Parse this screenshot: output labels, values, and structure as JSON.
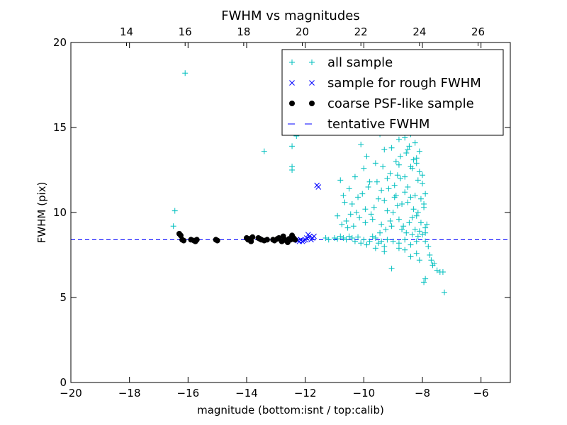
{
  "chart_data": {
    "type": "scatter",
    "title": "FWHM vs magnitudes",
    "xlabel": "magnitude (bottom:isnt / top:calib)",
    "ylabel": "FWHM (pix)",
    "xlim": [
      -20,
      -5
    ],
    "ylim": [
      0,
      20
    ],
    "x_ticks": [
      -20,
      -18,
      -16,
      -14,
      -12,
      -10,
      -8,
      -6
    ],
    "x_tick_labels": [
      "−20",
      "−18",
      "−16",
      "−14",
      "−12",
      "−10",
      "−8",
      "−6"
    ],
    "y_ticks": [
      0,
      5,
      10,
      15,
      20
    ],
    "y_tick_labels": [
      "0",
      "5",
      "10",
      "15",
      "20"
    ],
    "top_axis": {
      "offset": 32.1,
      "ticks": [
        14,
        16,
        18,
        20,
        22,
        24,
        26
      ],
      "tick_labels": [
        "14",
        "16",
        "18",
        "20",
        "22",
        "24",
        "26"
      ]
    },
    "grid": false,
    "legend_position": "top-right",
    "colors": {
      "all_sample": "#00bfbf",
      "rough_fwhm": "#0000ff",
      "coarse_psf": "#000000",
      "tentative_fwhm": "#0000ff"
    },
    "series": [
      {
        "name": "all sample",
        "marker": "plus",
        "points": [
          [
            -16.1,
            18.2
          ],
          [
            -16.45,
            10.1
          ],
          [
            -16.5,
            9.2
          ],
          [
            -13.4,
            13.6
          ],
          [
            -12.45,
            13.9
          ],
          [
            -12.45,
            12.7
          ],
          [
            -12.45,
            12.5
          ],
          [
            -12.35,
            15.1
          ],
          [
            -12.3,
            14.5
          ],
          [
            -11.3,
            8.5
          ],
          [
            -11.2,
            8.4
          ],
          [
            -11.0,
            8.5
          ],
          [
            -10.9,
            8.45
          ],
          [
            -10.8,
            8.6
          ],
          [
            -10.7,
            8.5
          ],
          [
            -10.6,
            8.4
          ],
          [
            -10.5,
            8.6
          ],
          [
            -10.4,
            8.5
          ],
          [
            -10.3,
            8.3
          ],
          [
            -10.2,
            8.55
          ],
          [
            -10.1,
            8.2
          ],
          [
            -10.0,
            8.4
          ],
          [
            -9.9,
            8.1
          ],
          [
            -9.8,
            8.3
          ],
          [
            -9.7,
            8.6
          ],
          [
            -9.6,
            8.5
          ],
          [
            -9.5,
            8.2
          ],
          [
            -9.4,
            8.3
          ],
          [
            -9.3,
            8.0
          ],
          [
            -9.2,
            8.4
          ],
          [
            -9.0,
            8.3
          ],
          [
            -8.8,
            8.2
          ],
          [
            -8.6,
            8.4
          ],
          [
            -8.4,
            8.1
          ],
          [
            -8.2,
            8.3
          ],
          [
            -10.9,
            9.8
          ],
          [
            -10.8,
            11.9
          ],
          [
            -10.7,
            11.0
          ],
          [
            -10.6,
            9.5
          ],
          [
            -10.5,
            11.4
          ],
          [
            -10.4,
            10.5
          ],
          [
            -10.3,
            12.1
          ],
          [
            -10.2,
            10.9
          ],
          [
            -10.1,
            14.0
          ],
          [
            -10.0,
            12.6
          ],
          [
            -9.95,
            10.2
          ],
          [
            -9.9,
            13.3
          ],
          [
            -9.8,
            11.8
          ],
          [
            -9.7,
            9.6
          ],
          [
            -9.6,
            12.9
          ],
          [
            -9.5,
            10.8
          ],
          [
            -9.45,
            14.6
          ],
          [
            -9.4,
            11.3
          ],
          [
            -9.3,
            13.7
          ],
          [
            -9.2,
            10.1
          ],
          [
            -9.1,
            12.3
          ],
          [
            -9.05,
            9.2
          ],
          [
            -9.0,
            15.2
          ],
          [
            -8.95,
            11.6
          ],
          [
            -8.9,
            13.0
          ],
          [
            -8.85,
            10.4
          ],
          [
            -8.8,
            14.3
          ],
          [
            -8.75,
            12.0
          ],
          [
            -8.7,
            9.0
          ],
          [
            -8.65,
            15.8
          ],
          [
            -8.6,
            11.2
          ],
          [
            -8.55,
            13.5
          ],
          [
            -8.5,
            10.6
          ],
          [
            -8.45,
            16.8
          ],
          [
            -8.4,
            12.7
          ],
          [
            -8.35,
            9.7
          ],
          [
            -8.3,
            14.9
          ],
          [
            -8.25,
            11.0
          ],
          [
            -8.2,
            13.2
          ],
          [
            -8.15,
            10.0
          ],
          [
            -8.1,
            12.4
          ],
          [
            -8.05,
            9.4
          ],
          [
            -8.0,
            11.7
          ],
          [
            -7.95,
            10.3
          ],
          [
            -7.9,
            9.1
          ],
          [
            -8.6,
            18.6
          ],
          [
            -8.55,
            17.4
          ],
          [
            -8.5,
            16.2
          ],
          [
            -8.7,
            15.4
          ],
          [
            -8.4,
            15.0
          ],
          [
            -8.8,
            12.8
          ],
          [
            -8.9,
            11.0
          ],
          [
            -9.0,
            10.0
          ],
          [
            -9.1,
            9.5
          ],
          [
            -9.2,
            12.0
          ],
          [
            -9.3,
            10.7
          ],
          [
            -9.4,
            9.3
          ],
          [
            -9.55,
            11.8
          ],
          [
            -9.65,
            10.3
          ],
          [
            -9.75,
            9.9
          ],
          [
            -9.85,
            11.5
          ],
          [
            -9.95,
            9.4
          ],
          [
            -10.05,
            11.1
          ],
          [
            -10.15,
            9.7
          ],
          [
            -10.25,
            10.0
          ],
          [
            -10.35,
            9.2
          ],
          [
            -10.45,
            9.9
          ],
          [
            -10.55,
            9.1
          ],
          [
            -10.65,
            10.6
          ],
          [
            -10.75,
            9.3
          ],
          [
            -8.6,
            12.1
          ],
          [
            -8.5,
            11.5
          ],
          [
            -8.45,
            13.9
          ],
          [
            -8.4,
            10.9
          ],
          [
            -8.35,
            12.6
          ],
          [
            -8.3,
            10.2
          ],
          [
            -8.25,
            14.1
          ],
          [
            -8.2,
            9.8
          ],
          [
            -8.15,
            11.9
          ],
          [
            -8.1,
            8.9
          ],
          [
            -8.05,
            10.8
          ],
          [
            -8.0,
            8.7
          ],
          [
            -8.7,
            10.5
          ],
          [
            -8.75,
            13.3
          ],
          [
            -8.8,
            9.6
          ],
          [
            -8.85,
            12.2
          ],
          [
            -8.95,
            10.9
          ],
          [
            -9.05,
            13.8
          ],
          [
            -9.15,
            11.4
          ],
          [
            -9.25,
            9.0
          ],
          [
            -9.35,
            12.7
          ],
          [
            -9.45,
            8.8
          ],
          [
            -8.65,
            9.2
          ],
          [
            -8.55,
            8.8
          ],
          [
            -8.45,
            9.4
          ],
          [
            -8.35,
            8.7
          ],
          [
            -8.25,
            9.0
          ],
          [
            -8.15,
            8.6
          ],
          [
            -8.6,
            14.4
          ],
          [
            -8.5,
            13.7
          ],
          [
            -8.4,
            14.6
          ],
          [
            -8.3,
            13.1
          ],
          [
            -8.2,
            12.9
          ],
          [
            -8.1,
            13.6
          ],
          [
            -8.0,
            12.2
          ],
          [
            -7.9,
            8.3
          ],
          [
            -7.8,
            8.0
          ],
          [
            -7.75,
            7.5
          ],
          [
            -7.7,
            7.2
          ],
          [
            -7.65,
            6.9
          ],
          [
            -7.6,
            7.0
          ],
          [
            -7.5,
            6.6
          ],
          [
            -7.4,
            6.5
          ],
          [
            -7.3,
            6.5
          ],
          [
            -7.25,
            5.3
          ],
          [
            -7.9,
            6.1
          ],
          [
            -7.95,
            5.9
          ],
          [
            -8.1,
            7.2
          ],
          [
            -8.2,
            7.6
          ],
          [
            -8.4,
            7.4
          ],
          [
            -8.6,
            7.8
          ],
          [
            -8.8,
            7.9
          ],
          [
            -9.05,
            6.7
          ],
          [
            -9.3,
            7.7
          ],
          [
            -9.6,
            7.9
          ],
          [
            -7.9,
            8.8
          ],
          [
            -7.85,
            9.3
          ],
          [
            -7.95,
            10.5
          ],
          [
            -7.9,
            11.1
          ]
        ]
      },
      {
        "name": "sample for rough FWHM",
        "marker": "x",
        "points": [
          [
            -11.6,
            11.6
          ],
          [
            -11.55,
            11.5
          ],
          [
            -11.7,
            8.6
          ],
          [
            -11.75,
            8.5
          ],
          [
            -11.8,
            8.4
          ],
          [
            -11.85,
            8.6
          ],
          [
            -11.9,
            8.7
          ],
          [
            -11.95,
            8.5
          ],
          [
            -12.0,
            8.4
          ],
          [
            -12.05,
            8.35
          ],
          [
            -12.1,
            8.3
          ],
          [
            -12.15,
            8.4
          ],
          [
            -12.2,
            8.3
          ],
          [
            -12.25,
            8.35
          ],
          [
            -12.3,
            8.4
          ]
        ]
      },
      {
        "name": "coarse PSF-like sample",
        "marker": "dot",
        "points": [
          [
            -16.3,
            8.75
          ],
          [
            -16.25,
            8.65
          ],
          [
            -16.2,
            8.4
          ],
          [
            -16.15,
            8.35
          ],
          [
            -15.9,
            8.4
          ],
          [
            -15.8,
            8.35
          ],
          [
            -15.75,
            8.3
          ],
          [
            -15.7,
            8.4
          ],
          [
            -15.05,
            8.4
          ],
          [
            -15.0,
            8.35
          ],
          [
            -14.0,
            8.5
          ],
          [
            -13.95,
            8.4
          ],
          [
            -13.9,
            8.45
          ],
          [
            -13.85,
            8.3
          ],
          [
            -13.8,
            8.55
          ],
          [
            -13.6,
            8.5
          ],
          [
            -13.55,
            8.45
          ],
          [
            -13.5,
            8.4
          ],
          [
            -13.4,
            8.35
          ],
          [
            -13.3,
            8.4
          ],
          [
            -13.1,
            8.4
          ],
          [
            -13.05,
            8.35
          ],
          [
            -12.95,
            8.45
          ],
          [
            -12.9,
            8.5
          ],
          [
            -12.8,
            8.3
          ],
          [
            -12.75,
            8.6
          ],
          [
            -12.7,
            8.4
          ],
          [
            -12.65,
            8.35
          ],
          [
            -12.6,
            8.25
          ],
          [
            -12.55,
            8.45
          ],
          [
            -12.5,
            8.4
          ],
          [
            -12.45,
            8.65
          ],
          [
            -12.4,
            8.5
          ],
          [
            -12.35,
            8.4
          ]
        ]
      }
    ],
    "reference_line": {
      "name": "tentative FWHM",
      "y": 8.4,
      "style": "dashed"
    }
  }
}
